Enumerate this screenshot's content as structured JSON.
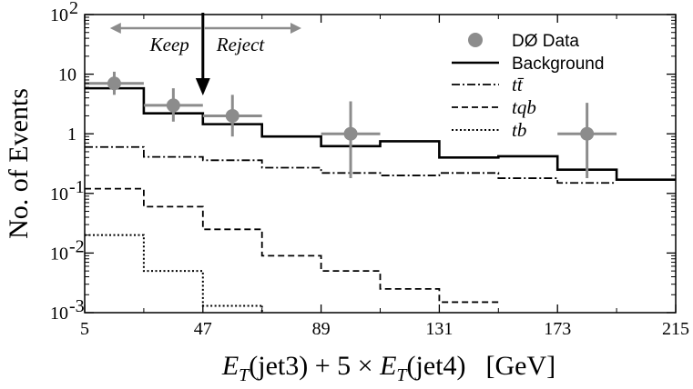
{
  "chart_data": {
    "type": "histogram",
    "title": "",
    "xlabel": "E_T (jet3) + 5 × E_T (jet4)   [GeV]",
    "xlabel_parts": {
      "e": "E",
      "t": "T",
      "jet3": "(jet3) + 5 × ",
      "jet4": "(jet4)",
      "unit": "[GeV]"
    },
    "ylabel": "No. of Events",
    "yscale": "log",
    "xlim": [
      5,
      215
    ],
    "ylim": [
      0.001,
      100
    ],
    "x_ticks": [
      5,
      47,
      89,
      131,
      173,
      215
    ],
    "x_tick_labels": [
      "5",
      "47",
      "89",
      "131",
      "173",
      "215"
    ],
    "y_ticks": [
      {
        "value": 100,
        "base": "10",
        "exp": "2"
      },
      {
        "value": 10,
        "base": "10",
        "exp": ""
      },
      {
        "value": 1,
        "base": "1",
        "exp": ""
      },
      {
        "value": 0.1,
        "base": "10",
        "exp": "-1"
      },
      {
        "value": 0.01,
        "base": "10",
        "exp": "-2"
      },
      {
        "value": 0.001,
        "base": "10",
        "exp": "-3"
      }
    ],
    "bin_edges": [
      5,
      26,
      47,
      68,
      89,
      110,
      131,
      152,
      173,
      194,
      215
    ],
    "series": [
      {
        "name": "Background",
        "style": "solid",
        "values": [
          5.8,
          2.2,
          1.45,
          0.9,
          0.62,
          0.75,
          0.4,
          0.42,
          0.25,
          0.17
        ]
      },
      {
        "name": "tt̄",
        "style": "dashdot",
        "values": [
          0.6,
          0.41,
          0.36,
          0.27,
          0.22,
          0.2,
          0.22,
          0.18,
          0.15,
          null
        ]
      },
      {
        "name": "tqb",
        "style": "dashed",
        "values": [
          0.12,
          0.06,
          0.025,
          0.009,
          0.005,
          0.0025,
          0.0015,
          null,
          null,
          null
        ]
      },
      {
        "name": "tb",
        "style": "dotted",
        "values": [
          0.02,
          0.005,
          0.0013,
          null,
          null,
          null,
          null,
          null,
          null,
          null
        ]
      }
    ],
    "data_points": {
      "name": "DØ Data",
      "color": "#8c8c8c",
      "points": [
        {
          "x": 15.5,
          "y": 7.0,
          "xerr": 10.5,
          "ylo": 4.5,
          "yhi": 11
        },
        {
          "x": 36.5,
          "y": 3.0,
          "xerr": 10.5,
          "ylo": 1.6,
          "yhi": 5.8
        },
        {
          "x": 57.5,
          "y": 2.0,
          "xerr": 10.5,
          "ylo": 0.9,
          "yhi": 4.5
        },
        {
          "x": 99.5,
          "y": 1.0,
          "xerr": 10.5,
          "ylo": 0.18,
          "yhi": 3.5
        },
        {
          "x": 183.5,
          "y": 1.0,
          "xerr": 10.5,
          "ylo": 0.18,
          "yhi": 3.3
        }
      ]
    },
    "legend": {
      "placement": "top-right",
      "entries": [
        {
          "label": "DØ Data",
          "kind": "marker"
        },
        {
          "label": "Background",
          "kind": "solid"
        },
        {
          "label": "tt̄",
          "kind": "dashdot"
        },
        {
          "label": "tqb",
          "kind": "dashed"
        },
        {
          "label": "tb",
          "kind": "dotted"
        }
      ]
    },
    "annotations": {
      "keep": "Keep",
      "reject": "Reject",
      "cut_value": 47,
      "arrow_left_to": 14,
      "arrow_right_to": 82
    },
    "colors": {
      "line": "#000000",
      "data": "#8c8c8c",
      "annotation_arrow": "#8c8c8c"
    }
  }
}
